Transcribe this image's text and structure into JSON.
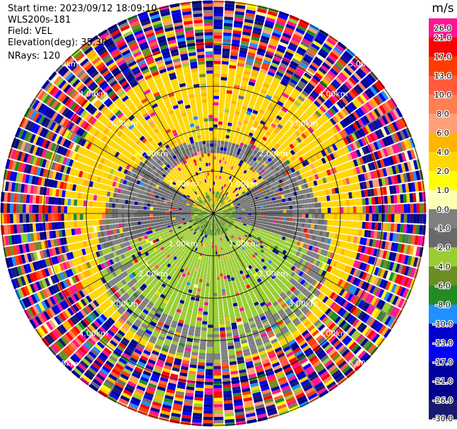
{
  "info": {
    "start_time": "Start time: 2023/09/12 18:09:10",
    "instrument": "WLS200s-181",
    "field": "Field: VEL",
    "elevation": "Elevation(deg): 35.30",
    "nrays": "NRays: 120"
  },
  "chart_data": {
    "type": "heatmap",
    "projection": "polar-ppi",
    "field": "VEL",
    "units": "m/s",
    "n_rays": 120,
    "range_rings_km": [
      1,
      2,
      3,
      4,
      5
    ],
    "range_ring_labels": [
      "1.00km",
      "2.00km",
      "3.00km",
      "4.00km",
      "5.00km"
    ],
    "max_range_km": 5.0,
    "spokes_deg": [
      0,
      30,
      60,
      90,
      120,
      150,
      180,
      210,
      240,
      270,
      300,
      330
    ],
    "approx_field_structure": [
      {
        "range_km": [
          0.0,
          0.6
        ],
        "description_value_mps": -6.0
      },
      {
        "range_km": [
          0.6,
          2.4
        ],
        "description_value_mps": -2.0
      },
      {
        "range_km": [
          2.4,
          3.5
        ],
        "description_value_mps": 3.0
      },
      {
        "range_km": [
          3.5,
          5.0
        ],
        "description_value_mps": "noise"
      }
    ],
    "colorbar": {
      "label": "m/s",
      "ticks": [
        "26.0",
        "21.0",
        "17.0",
        "13.0",
        "10.0",
        "8.0",
        "6.0",
        "4.0",
        "2.0",
        "1.0",
        "0.0",
        "-1.0",
        "-2.0",
        "-4.0",
        "-6.0",
        "-8.0",
        "-10.0",
        "-13.0",
        "-17.0",
        "-21.0",
        "-26.0",
        "-30.0"
      ],
      "colors": [
        "#ff1493",
        "#ff0000",
        "#ff3c00",
        "#ff5a3c",
        "#ff7f50",
        "#ffa07a",
        "#ffb400",
        "#ffd700",
        "#ffff00",
        "#ffffb4",
        "#808080",
        "#696969",
        "#9acd32",
        "#6b8e23",
        "#228b22",
        "#1e90ff",
        "#0000cd",
        "#0000ff",
        "#0000a0",
        "#00008b",
        "#191970"
      ]
    }
  }
}
